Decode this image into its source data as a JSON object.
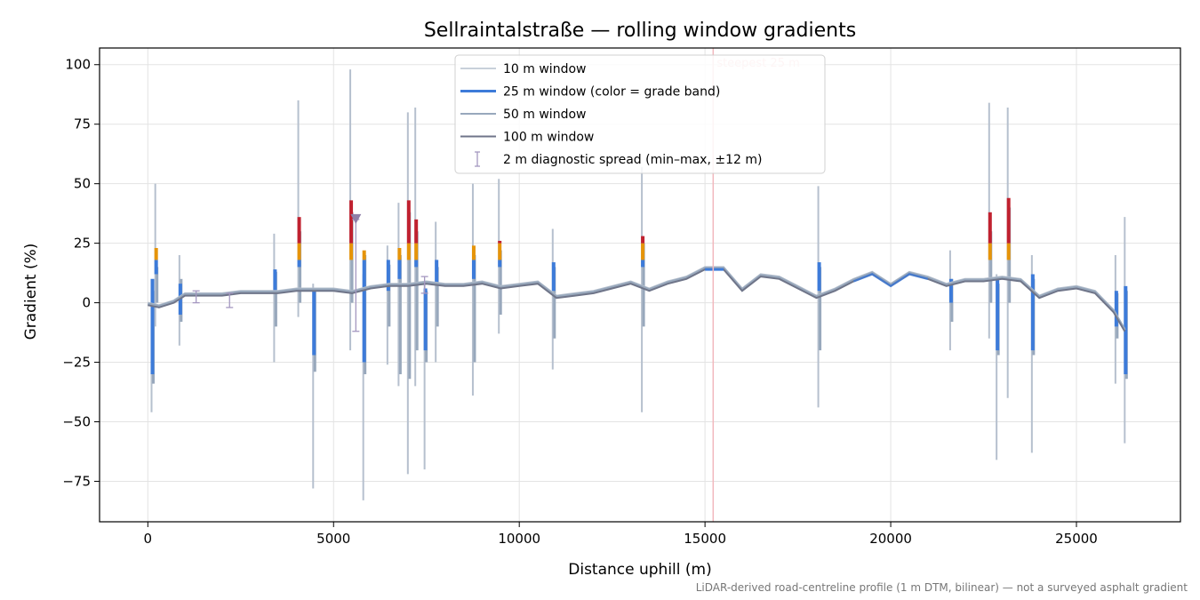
{
  "chart_data": {
    "type": "line",
    "title": "Sellraintalstraße — rolling window gradients",
    "xlabel": "Distance uphill (m)",
    "ylabel": "Gradient (%)",
    "xlim": [
      -1300,
      27800
    ],
    "ylim": [
      -92,
      107
    ],
    "xticks": [
      0,
      5000,
      10000,
      15000,
      20000,
      25000
    ],
    "yticks": [
      -75,
      -50,
      -25,
      0,
      25,
      50,
      75,
      100
    ],
    "grid": true,
    "legend_position": "top-center",
    "legend": [
      {
        "label": "10 m window",
        "color": "#b6c0ce"
      },
      {
        "label": "25 m window (color = grade band)",
        "color": "#3d7bd9"
      },
      {
        "label": "50 m window",
        "color": "#98a8bc"
      },
      {
        "label": "100 m window",
        "color": "#6f7589"
      },
      {
        "label": "2 m diagnostic spread (min–max, ±12 m)",
        "color": "#a497c0"
      }
    ],
    "annotation": {
      "label": "steepest 25 m",
      "x": 15220,
      "color": "#f2b8bd"
    },
    "footnote": "LiDAR-derived road-centreline profile (1 m DTM, bilinear) — not a surveyed asphalt gradient",
    "grade_band_colors": {
      "normal": "#3d7bd9",
      "steep": "#e69409",
      "very_steep": "#c0212f"
    },
    "baseline_profile": [
      [
        0,
        -1
      ],
      [
        300,
        -2
      ],
      [
        700,
        0
      ],
      [
        1000,
        3
      ],
      [
        2000,
        3
      ],
      [
        2500,
        4
      ],
      [
        3000,
        4
      ],
      [
        3500,
        4
      ],
      [
        4000,
        5
      ],
      [
        4500,
        5
      ],
      [
        5000,
        5
      ],
      [
        5500,
        4
      ],
      [
        6000,
        6
      ],
      [
        6500,
        7
      ],
      [
        7000,
        7
      ],
      [
        7500,
        8
      ],
      [
        8000,
        7
      ],
      [
        8500,
        7
      ],
      [
        9000,
        8
      ],
      [
        9500,
        6
      ],
      [
        10000,
        7
      ],
      [
        10500,
        8
      ],
      [
        11000,
        2
      ],
      [
        11500,
        3
      ],
      [
        12000,
        4
      ],
      [
        12500,
        6
      ],
      [
        13000,
        8
      ],
      [
        13500,
        5
      ],
      [
        14000,
        8
      ],
      [
        14500,
        10
      ],
      [
        15000,
        14
      ],
      [
        15500,
        14
      ],
      [
        16000,
        5
      ],
      [
        16500,
        11
      ],
      [
        17000,
        10
      ],
      [
        17500,
        6
      ],
      [
        18000,
        2
      ],
      [
        18500,
        5
      ],
      [
        19000,
        9
      ],
      [
        19500,
        12
      ],
      [
        20000,
        7
      ],
      [
        20500,
        12
      ],
      [
        21000,
        10
      ],
      [
        21500,
        7
      ],
      [
        22000,
        9
      ],
      [
        22500,
        9
      ],
      [
        23000,
        10
      ],
      [
        23500,
        9
      ],
      [
        24000,
        2
      ],
      [
        24500,
        5
      ],
      [
        25000,
        6
      ],
      [
        25500,
        4
      ],
      [
        26000,
        -4
      ],
      [
        26300,
        -12
      ]
    ],
    "window_spikes": [
      {
        "x": 100,
        "w10": [
          -46,
          2
        ],
        "w25": [
          -30,
          10
        ],
        "w50": [
          -34,
          5
        ]
      },
      {
        "x": 200,
        "w10": [
          -10,
          50
        ],
        "w25": [
          12,
          23
        ],
        "w50": [
          0,
          15
        ]
      },
      {
        "x": 850,
        "w10": [
          -18,
          20
        ],
        "w25": [
          -5,
          8
        ],
        "w50": [
          -8,
          10
        ]
      },
      {
        "x": 3400,
        "w10": [
          -25,
          29
        ],
        "w25": [
          5,
          14
        ],
        "w50": [
          -10,
          13
        ]
      },
      {
        "x": 4050,
        "w10": [
          -6,
          85
        ],
        "w25": [
          15,
          36
        ],
        "w50": [
          0,
          30
        ]
      },
      {
        "x": 4450,
        "w10": [
          -78,
          8
        ],
        "w25": [
          -22,
          6
        ],
        "w50": [
          -29,
          5
        ]
      },
      {
        "x": 5450,
        "w10": [
          -20,
          98
        ],
        "w25": [
          20,
          43
        ],
        "w50": [
          0,
          38
        ]
      },
      {
        "x": 5800,
        "w10": [
          -83,
          12
        ],
        "w25": [
          -25,
          22
        ],
        "w50": [
          -30,
          20
        ]
      },
      {
        "x": 6450,
        "w10": [
          -26,
          24
        ],
        "w25": [
          5,
          18
        ],
        "w50": [
          -10,
          16
        ]
      },
      {
        "x": 6750,
        "w10": [
          -35,
          42
        ],
        "w25": [
          10,
          23
        ],
        "w50": [
          -30,
          20
        ]
      },
      {
        "x": 7000,
        "w10": [
          -72,
          80
        ],
        "w25": [
          25,
          43
        ],
        "w50": [
          -32,
          38
        ]
      },
      {
        "x": 7200,
        "w10": [
          -35,
          82
        ],
        "w25": [
          15,
          35
        ],
        "w50": [
          -20,
          30
        ]
      },
      {
        "x": 7450,
        "w10": [
          -70,
          8
        ],
        "w25": [
          -20,
          6
        ],
        "w50": [
          -25,
          5
        ]
      },
      {
        "x": 7750,
        "w10": [
          -25,
          34
        ],
        "w25": [
          8,
          18
        ],
        "w50": [
          -10,
          15
        ]
      },
      {
        "x": 8750,
        "w10": [
          -39,
          50
        ],
        "w25": [
          10,
          24
        ],
        "w50": [
          -25,
          20
        ]
      },
      {
        "x": 9450,
        "w10": [
          -13,
          52
        ],
        "w25": [
          15,
          26
        ],
        "w50": [
          -5,
          22
        ]
      },
      {
        "x": 10900,
        "w10": [
          -28,
          31
        ],
        "w25": [
          5,
          17
        ],
        "w50": [
          -15,
          15
        ]
      },
      {
        "x": 13300,
        "w10": [
          -46,
          57
        ],
        "w25": [
          15,
          28
        ],
        "w50": [
          -10,
          25
        ]
      },
      {
        "x": 18050,
        "w10": [
          -44,
          49
        ],
        "w25": [
          5,
          17
        ],
        "w50": [
          -20,
          15
        ]
      },
      {
        "x": 21600,
        "w10": [
          -20,
          22
        ],
        "w25": [
          0,
          10
        ],
        "w50": [
          -8,
          10
        ]
      },
      {
        "x": 22650,
        "w10": [
          -15,
          84
        ],
        "w25": [
          20,
          38
        ],
        "w50": [
          0,
          30
        ]
      },
      {
        "x": 22850,
        "w10": [
          -66,
          12
        ],
        "w25": [
          -20,
          10
        ],
        "w50": [
          -22,
          8
        ]
      },
      {
        "x": 23150,
        "w10": [
          -40,
          82
        ],
        "w25": [
          20,
          44
        ],
        "w50": [
          0,
          40
        ]
      },
      {
        "x": 23800,
        "w10": [
          -63,
          20
        ],
        "w25": [
          -20,
          12
        ],
        "w50": [
          -22,
          10
        ]
      },
      {
        "x": 26050,
        "w10": [
          -34,
          20
        ],
        "w25": [
          -10,
          5
        ],
        "w50": [
          -15,
          4
        ]
      },
      {
        "x": 26300,
        "w10": [
          -59,
          36
        ],
        "w25": [
          -30,
          7
        ],
        "w50": [
          -32,
          5
        ]
      }
    ],
    "diagnostic_spread": [
      {
        "x": 1300,
        "min": 0,
        "max": 5
      },
      {
        "x": 2200,
        "min": -2,
        "max": 4
      },
      {
        "x": 5600,
        "min": -12,
        "max": 35
      },
      {
        "x": 7450,
        "min": 4,
        "max": 11
      }
    ],
    "steepest_marker": {
      "x": 5600,
      "y": 35
    }
  }
}
